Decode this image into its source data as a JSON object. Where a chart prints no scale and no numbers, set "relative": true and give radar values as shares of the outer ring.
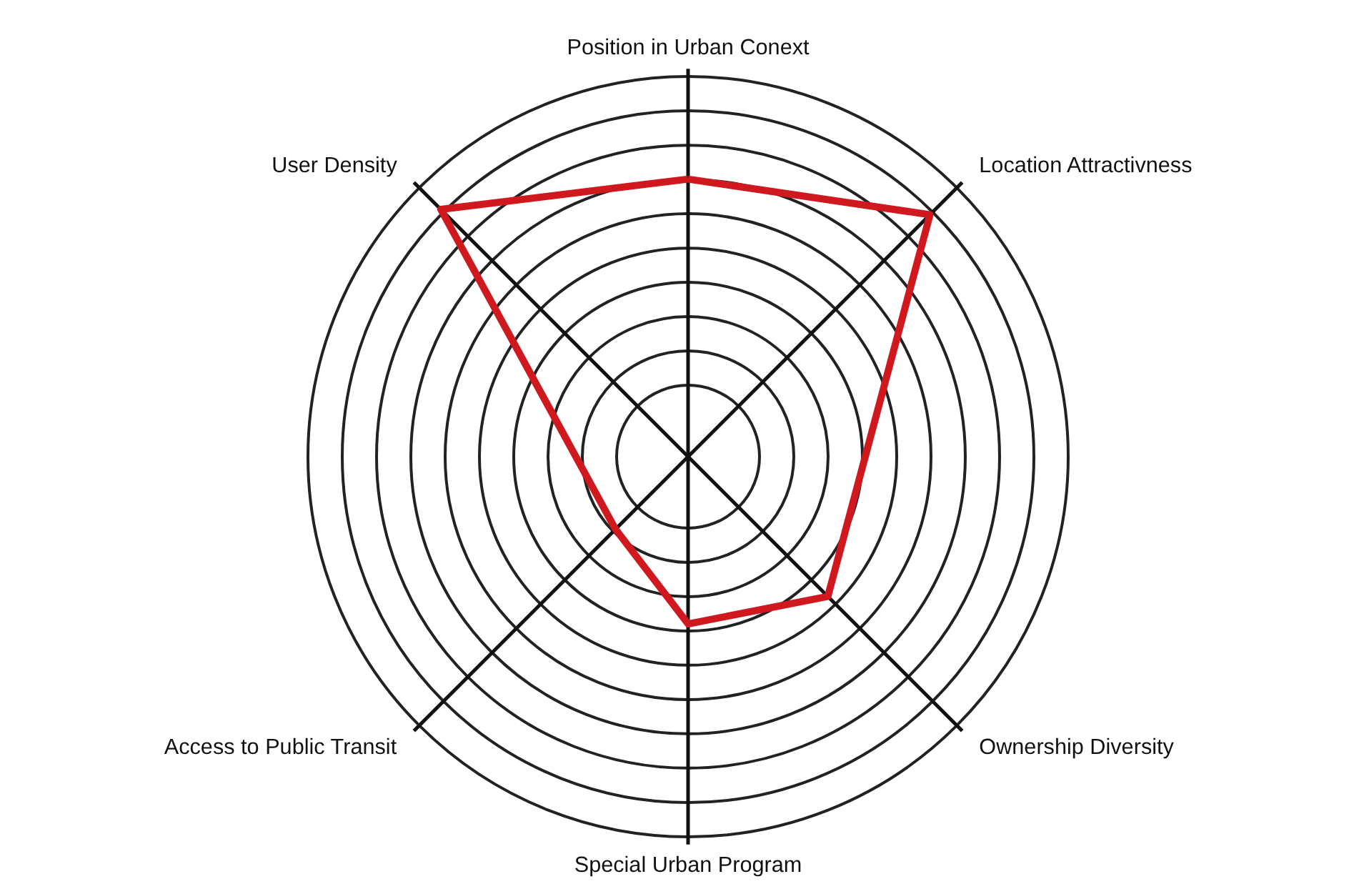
{
  "chart_data": {
    "type": "radar",
    "relative": true,
    "categories": [
      "Position in Urban Conext",
      "Location Attractivness",
      "Ownership Diversity",
      "Special Urban Program",
      "Access to Public Transit",
      "User Density"
    ],
    "series": [
      {
        "color": "#d0191f",
        "values": [
          0.73,
          0.9,
          0.52,
          0.44,
          0.27,
          0.92
        ]
      }
    ],
    "marker": "none",
    "grid": true
  }
}
